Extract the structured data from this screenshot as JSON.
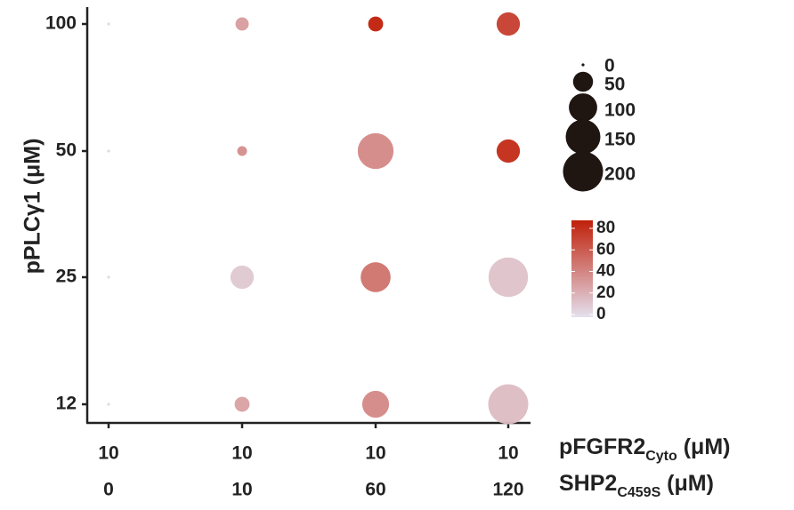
{
  "chart_data": {
    "type": "scatter",
    "y_axis": {
      "label": "pPLCγ1 (μM)",
      "ticks": [
        "12",
        "25",
        "50",
        "100"
      ]
    },
    "x_axis": {
      "rows": [
        {
          "label_main": "pFGFR2",
          "label_sub": "Cyto",
          "label_unit": " (μM)",
          "ticks": [
            "10",
            "10",
            "10",
            "10"
          ]
        },
        {
          "label_main": "SHP2",
          "label_sub": "C459S",
          "label_unit": " (μM)",
          "ticks": [
            "0",
            "10",
            "60",
            "120"
          ]
        }
      ]
    },
    "size_legend": {
      "values": [
        0,
        50,
        100,
        150,
        200
      ],
      "labels": [
        "0",
        "50",
        "100",
        "150",
        "200"
      ]
    },
    "color_legend": {
      "range": [
        0,
        80
      ],
      "ticks": [
        "80",
        "60",
        "40",
        "20",
        "0"
      ],
      "low_color": "#e4e0ee",
      "high_color": "#c0200a"
    },
    "points": [
      {
        "x": 0,
        "y": 0,
        "size": 1,
        "color": 2
      },
      {
        "x": 0,
        "y": 1,
        "size": 1,
        "color": 2
      },
      {
        "x": 0,
        "y": 2,
        "size": 1,
        "color": 2
      },
      {
        "x": 0,
        "y": 3,
        "size": 1,
        "color": 2
      },
      {
        "x": 1,
        "y": 0,
        "size": 28,
        "color": 20
      },
      {
        "x": 1,
        "y": 1,
        "size": 68,
        "color": 6
      },
      {
        "x": 1,
        "y": 2,
        "size": 12,
        "color": 28
      },
      {
        "x": 1,
        "y": 3,
        "size": 22,
        "color": 22
      },
      {
        "x": 2,
        "y": 0,
        "size": 90,
        "color": 30
      },
      {
        "x": 2,
        "y": 1,
        "size": 112,
        "color": 40
      },
      {
        "x": 2,
        "y": 2,
        "size": 160,
        "color": 30
      },
      {
        "x": 2,
        "y": 3,
        "size": 28,
        "color": 80
      },
      {
        "x": 3,
        "y": 0,
        "size": 200,
        "color": 10
      },
      {
        "x": 3,
        "y": 1,
        "size": 195,
        "color": 8
      },
      {
        "x": 3,
        "y": 2,
        "size": 68,
        "color": 75
      },
      {
        "x": 3,
        "y": 3,
        "size": 68,
        "color": 65
      }
    ]
  }
}
